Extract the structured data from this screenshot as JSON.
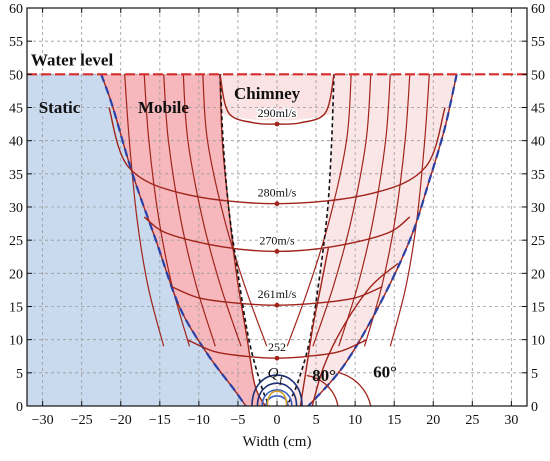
{
  "chart_data": {
    "type": "line",
    "xlabel": "Width (cm)",
    "ylabel": "",
    "xlim": [
      -32,
      32
    ],
    "ylim": [
      0,
      60
    ],
    "xticks": [
      -30,
      -25,
      -20,
      -15,
      -10,
      -5,
      0,
      5,
      10,
      15,
      20,
      25,
      30
    ],
    "yticks": [
      0,
      5,
      10,
      15,
      20,
      25,
      30,
      35,
      40,
      45,
      50,
      55,
      60
    ],
    "grid": true,
    "water_level": 50,
    "annotations": {
      "water_level": "Water level",
      "static": "Static",
      "mobile": "Mobile",
      "chimney": "Chimney",
      "qf": "Q",
      "qf_sub": "f",
      "angle_80": "80°",
      "angle_60": "60°"
    },
    "zones": {
      "static_boundary": [
        [
          -22.5,
          50
        ],
        [
          -21,
          45
        ],
        [
          -18.5,
          35
        ],
        [
          -15.5,
          25
        ],
        [
          -12.5,
          15
        ],
        [
          -9,
          8
        ],
        [
          -5.5,
          2.5
        ],
        [
          -4,
          0
        ]
      ],
      "mobile_boundary": [
        [
          -7.3,
          50
        ],
        [
          -7,
          40
        ],
        [
          -6.2,
          30
        ],
        [
          -5.2,
          20
        ],
        [
          -3.8,
          10
        ],
        [
          -2.8,
          3
        ],
        [
          -1.5,
          0
        ]
      ],
      "chimney_left": [
        [
          -7.3,
          50
        ],
        [
          -6.9,
          40
        ],
        [
          -6.2,
          30
        ],
        [
          -5,
          20
        ],
        [
          -3.6,
          10
        ],
        [
          -2,
          3
        ],
        [
          -1,
          0
        ]
      ],
      "chimney_right": [
        [
          7.3,
          50
        ],
        [
          7,
          40
        ],
        [
          6.5,
          30
        ],
        [
          5.5,
          20
        ],
        [
          4.2,
          10
        ],
        [
          2.5,
          3
        ],
        [
          1.2,
          0
        ]
      ],
      "right_outer_dashed": [
        [
          23,
          50
        ],
        [
          21.5,
          42
        ],
        [
          19.5,
          34
        ],
        [
          17,
          25
        ],
        [
          13,
          15
        ],
        [
          8.5,
          6
        ],
        [
          4,
          0
        ]
      ]
    },
    "series": [
      {
        "name": "290ml/s",
        "y_center": 42.5,
        "label": "290ml/s",
        "points": [
          [
            -7.3,
            50
          ],
          [
            -6.2,
            44.2
          ],
          [
            -3,
            42.7
          ],
          [
            0,
            42.5
          ],
          [
            3,
            42.7
          ],
          [
            6.2,
            44.2
          ],
          [
            7.3,
            50
          ]
        ]
      },
      {
        "name": "280ml/s",
        "y_center": 30.5,
        "label": "280ml/s",
        "points": [
          [
            -21.5,
            45
          ],
          [
            -19,
            36
          ],
          [
            -12,
            32
          ],
          [
            0,
            30.5
          ],
          [
            12,
            32
          ],
          [
            19,
            36
          ],
          [
            21.5,
            45
          ]
        ]
      },
      {
        "name": "270m/s",
        "y_center": 23.3,
        "label": "270m/s",
        "points": [
          [
            -17,
            28.5
          ],
          [
            -14,
            26
          ],
          [
            -7,
            24
          ],
          [
            0,
            23.3
          ],
          [
            7,
            24
          ],
          [
            14,
            26
          ],
          [
            17,
            28.5
          ]
        ]
      },
      {
        "name": "261ml/s",
        "y_center": 15.2,
        "label": "261ml/s",
        "points": [
          [
            -13.5,
            18
          ],
          [
            -10,
            16.3
          ],
          [
            -5,
            15.5
          ],
          [
            0,
            15.2
          ],
          [
            5,
            15.5
          ],
          [
            10,
            16.3
          ],
          [
            13.5,
            18
          ]
        ]
      },
      {
        "name": "252",
        "y_center": 7.2,
        "label": "252",
        "points": [
          [
            -11.5,
            10
          ],
          [
            -8,
            8.2
          ],
          [
            -4,
            7.5
          ],
          [
            0,
            7.2
          ],
          [
            4,
            7.5
          ],
          [
            8,
            8.2
          ],
          [
            11.5,
            10
          ]
        ]
      }
    ],
    "colors": {
      "static_fill": "#c9d9ee",
      "mobile_fill": "#f6b8bc",
      "outer_pink": "#fbe3e4",
      "contour": "#a0241b",
      "water_line": "#d62c2c",
      "blue_dashed": "#2941a6",
      "navy_orifice": "#1f2f75"
    }
  }
}
